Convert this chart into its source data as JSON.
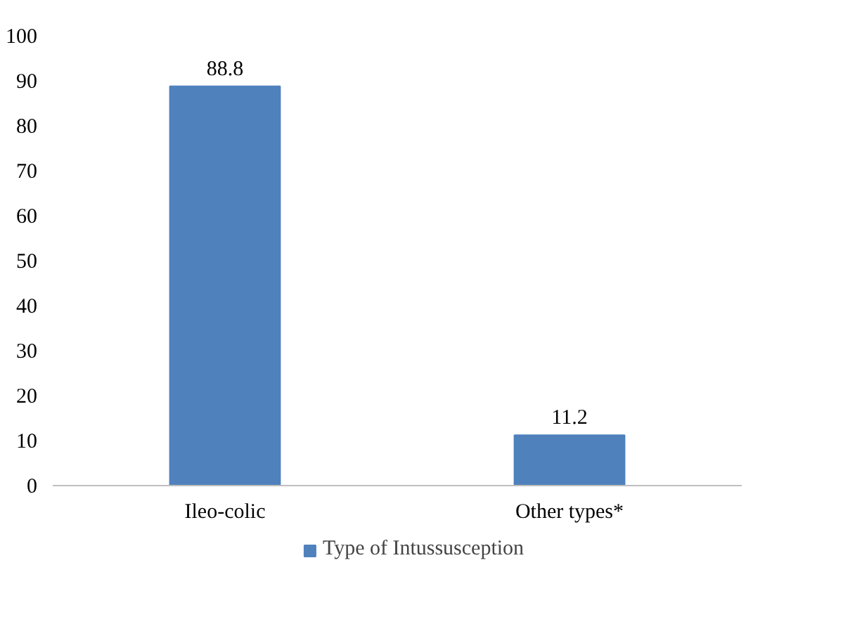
{
  "chart_data": {
    "type": "bar",
    "categories": [
      "Ileo-colic",
      "Other types*"
    ],
    "series": [
      {
        "name": "Type of Intussusception",
        "color": "#4f81bd",
        "values": [
          88.8,
          11.2
        ]
      }
    ],
    "ylim": [
      0,
      100
    ],
    "yticks": [
      0,
      10,
      20,
      30,
      40,
      50,
      60,
      70,
      80,
      90,
      100
    ],
    "data_labels": true,
    "grid": false,
    "legend": "bottom"
  }
}
